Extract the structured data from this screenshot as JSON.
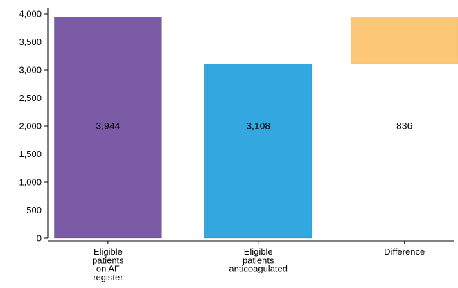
{
  "chart_data": {
    "type": "bar",
    "style": "waterfall",
    "categories": [
      [
        "Eligible",
        "patients",
        "on AF",
        "register"
      ],
      [
        "Eligible",
        "patients",
        "anticoagulated"
      ],
      [
        "Difference"
      ]
    ],
    "bars": [
      {
        "base": 0,
        "value": 3944,
        "label": "3,944",
        "color": "#7B5AA6"
      },
      {
        "base": 0,
        "value": 3108,
        "label": "3,108",
        "color": "#33A8E0"
      },
      {
        "base": 3108,
        "value": 3944,
        "label": "836",
        "color": "#FCC877"
      }
    ],
    "ylim": [
      0,
      4000
    ],
    "yticks": [
      0,
      500,
      1000,
      1500,
      2000,
      2500,
      3000,
      3500,
      4000
    ],
    "ytick_labels": [
      "0",
      "500",
      "1,000",
      "1,500",
      "2,000",
      "2,500",
      "3,000",
      "3,500",
      "4,000"
    ],
    "grid": false,
    "title": "",
    "xlabel": "",
    "ylabel": ""
  }
}
